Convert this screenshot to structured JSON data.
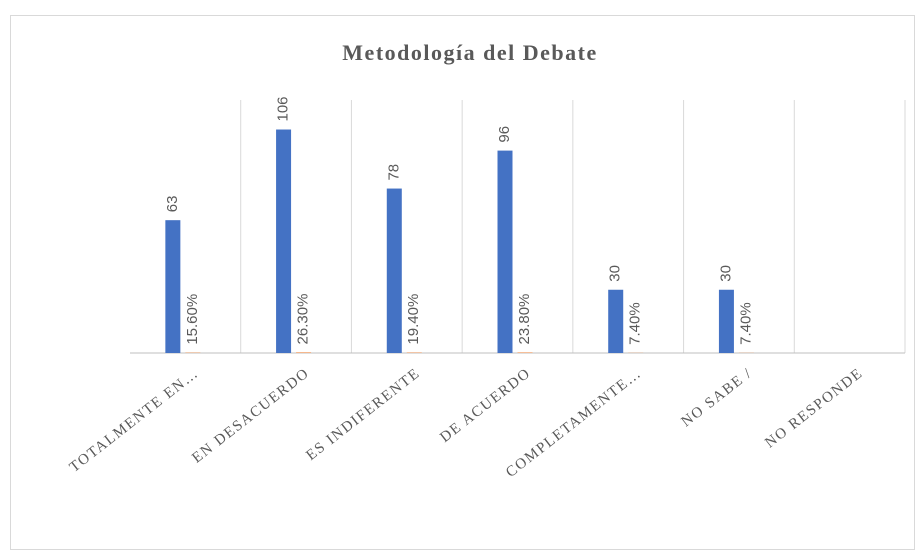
{
  "chart_data": {
    "type": "bar",
    "title": "Metodología del Debate",
    "categories": [
      "TOTALMENTE EN…",
      "EN DESACUERDO",
      "ES INDIFERENTE",
      "DE ACUERDO",
      "COMPLETAMENTE…",
      "NO SABE /",
      "NO RESPONDE"
    ],
    "series": [
      {
        "color": "#4472c4",
        "values": [
          63,
          106,
          78,
          96,
          30,
          30,
          null
        ]
      },
      {
        "color": "#ed7d31",
        "values": [
          0.156,
          0.263,
          0.194,
          0.238,
          0.074,
          0.074,
          null
        ],
        "value_labels": [
          "15.60%",
          "26.30%",
          "19.40%",
          "23.80%",
          "7.40%",
          "7.40%",
          null
        ]
      }
    ],
    "ylim": [
      0,
      120
    ]
  }
}
